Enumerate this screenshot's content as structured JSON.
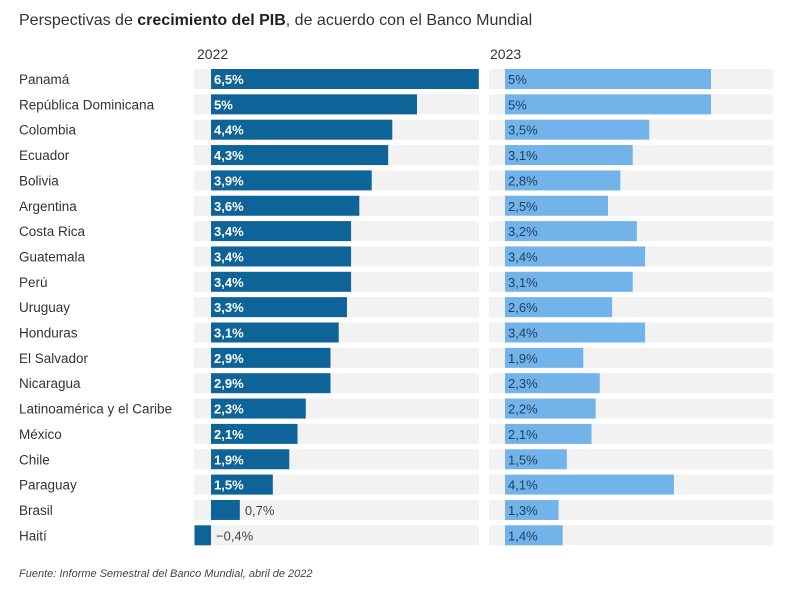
{
  "title": {
    "prefix": "Perspectivas de ",
    "bold": "crecimiento del PIB",
    "suffix": ", de acuerdo con el Banco Mundial"
  },
  "source": "Fuente: Informe Semestral del Banco Mundial, abril de 2022",
  "colors": {
    "bar_2022": "#0e6399",
    "bar_2023": "#72b4ea",
    "track": "#f2f2f2",
    "label_on_2022": "#ffffff",
    "label_on_2023": "#1d3f5e",
    "label_outside": "#444444"
  },
  "chart_data": {
    "type": "bar",
    "orientation": "horizontal",
    "title": "Perspectivas de crecimiento del PIB, de acuerdo con el Banco Mundial",
    "xlabel": "",
    "ylabel": "",
    "unit": "%",
    "categories": [
      "Panamá",
      "República Dominicana",
      "Colombia",
      "Ecuador",
      "Bolivia",
      "Argentina",
      "Costa Rica",
      "Guatemala",
      "Perú",
      "Uruguay",
      "Honduras",
      "El Salvador",
      "Nicaragua",
      "Latinoamérica y el Caribe",
      "México",
      "Chile",
      "Paraguay",
      "Brasil",
      "Haití"
    ],
    "series": [
      {
        "name": "2022",
        "values": [
          6.5,
          5,
          4.4,
          4.3,
          3.9,
          3.6,
          3.4,
          3.4,
          3.4,
          3.3,
          3.1,
          2.9,
          2.9,
          2.3,
          2.1,
          1.9,
          1.5,
          0.7,
          -0.4
        ],
        "labels": [
          "6,5%",
          "5%",
          "4,4%",
          "4,3%",
          "3,9%",
          "3,6%",
          "3,4%",
          "3,4%",
          "3,4%",
          "3,3%",
          "3,1%",
          "2,9%",
          "2,9%",
          "2,3%",
          "2,1%",
          "1,9%",
          "1,5%",
          "0,7%",
          "−0,4%"
        ],
        "xlim": [
          -0.4,
          6.5
        ]
      },
      {
        "name": "2023",
        "values": [
          5,
          5,
          3.5,
          3.1,
          2.8,
          2.5,
          3.2,
          3.4,
          3.1,
          2.6,
          3.4,
          1.9,
          2.3,
          2.2,
          2.1,
          1.5,
          4.1,
          1.3,
          1.4
        ],
        "labels": [
          "5%",
          "5%",
          "3,5%",
          "3,1%",
          "2,8%",
          "2,5%",
          "3,2%",
          "3,4%",
          "3,1%",
          "2,6%",
          "3,4%",
          "1,9%",
          "2,3%",
          "2,2%",
          "2,1%",
          "1,5%",
          "4,1%",
          "1,3%",
          "1,4%"
        ],
        "xlim": [
          -0.4,
          6.5
        ]
      }
    ],
    "grid": false,
    "legend": "none"
  }
}
